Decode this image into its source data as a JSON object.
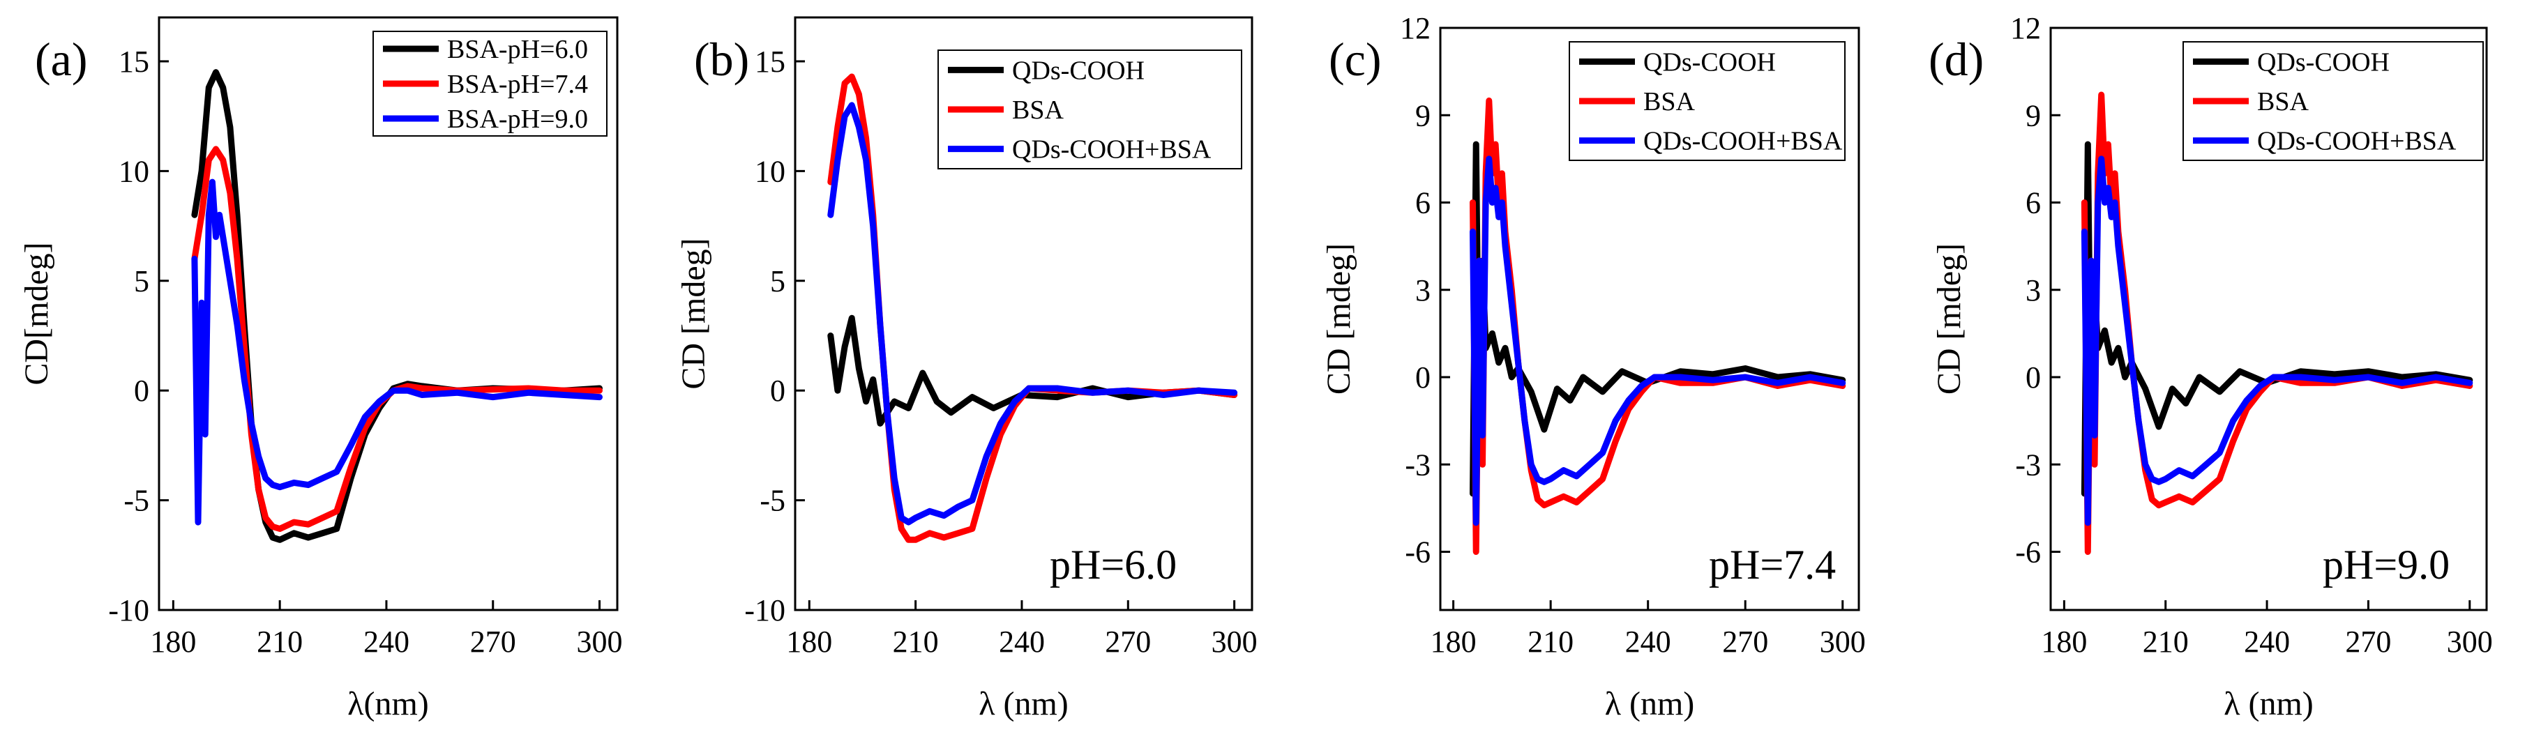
{
  "colors": {
    "black": "#000000",
    "red": "#ff0000",
    "blue": "#0000ff"
  },
  "chart_data": [
    {
      "type": "line",
      "panel_label": "(a)",
      "title": "",
      "xlabel": "λ(nm)",
      "ylabel": "CD[mdeg]",
      "xlim": [
        176,
        305
      ],
      "ylim": [
        -10,
        17
      ],
      "xticks": [
        180,
        210,
        240,
        270,
        300
      ],
      "yticks": [
        -10,
        -5,
        0,
        5,
        10,
        15
      ],
      "xtick_labels": [
        "180",
        "210",
        "240",
        "270",
        "300"
      ],
      "ytick_labels": [
        "-10",
        "-5",
        "0",
        "5",
        "10",
        "15"
      ],
      "annotation": "",
      "legend_position": "top-right",
      "series": [
        {
          "name": "BSA-pH=6.0",
          "color": "#000000",
          "x": [
            186,
            188,
            190,
            192,
            194,
            196,
            198,
            200,
            202,
            204,
            206,
            208,
            210,
            214,
            218,
            222,
            226,
            230,
            234,
            238,
            242,
            246,
            250,
            260,
            270,
            280,
            290,
            300
          ],
          "y": [
            8,
            10,
            13.8,
            14.5,
            13.8,
            12,
            8,
            3,
            -1.5,
            -4.5,
            -6,
            -6.7,
            -6.8,
            -6.5,
            -6.7,
            -6.5,
            -6.3,
            -4,
            -2,
            -0.8,
            0.1,
            0.3,
            0.2,
            0,
            0.1,
            0.05,
            0,
            0.1
          ]
        },
        {
          "name": "BSA-pH=7.4",
          "color": "#ff0000",
          "x": [
            186,
            188,
            190,
            192,
            194,
            196,
            198,
            200,
            202,
            204,
            206,
            208,
            210,
            214,
            218,
            222,
            226,
            230,
            234,
            238,
            242,
            246,
            250,
            260,
            270,
            280,
            290,
            300
          ],
          "y": [
            6,
            8,
            10.5,
            11,
            10.5,
            9,
            6,
            2,
            -2,
            -4.5,
            -5.8,
            -6.2,
            -6.3,
            -6,
            -6.1,
            -5.8,
            -5.5,
            -3.5,
            -1.7,
            -0.6,
            0,
            0.2,
            0.1,
            0,
            0.05,
            0.1,
            0,
            0
          ]
        },
        {
          "name": "BSA-pH=9.0",
          "color": "#0000ff",
          "x": [
            186,
            187,
            188,
            189,
            190,
            191,
            192,
            193,
            194,
            196,
            198,
            200,
            202,
            204,
            206,
            208,
            210,
            214,
            218,
            222,
            226,
            230,
            234,
            238,
            242,
            246,
            250,
            260,
            270,
            280,
            290,
            300
          ],
          "y": [
            6,
            -6,
            4,
            -2,
            8,
            9.5,
            7,
            8,
            7,
            5,
            3,
            0.5,
            -1.5,
            -3,
            -4,
            -4.3,
            -4.4,
            -4.2,
            -4.3,
            -4,
            -3.7,
            -2.5,
            -1.2,
            -0.5,
            0,
            0,
            -0.2,
            -0.1,
            -0.3,
            -0.1,
            -0.2,
            -0.3
          ]
        }
      ]
    },
    {
      "type": "line",
      "panel_label": "(b)",
      "title": "",
      "xlabel": "λ (nm)",
      "ylabel": "CD [mdeg]",
      "xlim": [
        176,
        305
      ],
      "ylim": [
        -10,
        17
      ],
      "xticks": [
        180,
        210,
        240,
        270,
        300
      ],
      "yticks": [
        -10,
        -5,
        0,
        5,
        10,
        15
      ],
      "xtick_labels": [
        "180",
        "210",
        "240",
        "270",
        "300"
      ],
      "ytick_labels": [
        "-10",
        "-5",
        "0",
        "5",
        "10",
        "15"
      ],
      "annotation": "pH=6.0",
      "legend_position": "top-right",
      "series": [
        {
          "name": "QDs-COOH",
          "color": "#000000",
          "x": [
            186,
            188,
            190,
            192,
            194,
            196,
            198,
            200,
            204,
            208,
            212,
            216,
            220,
            226,
            232,
            240,
            250,
            260,
            270,
            280,
            290,
            300
          ],
          "y": [
            2.5,
            0,
            2,
            3.3,
            1,
            -0.5,
            0.5,
            -1.5,
            -0.5,
            -0.8,
            0.8,
            -0.5,
            -1,
            -0.3,
            -0.8,
            -0.2,
            -0.3,
            0.1,
            -0.3,
            -0.1,
            0,
            -0.2
          ]
        },
        {
          "name": "BSA",
          "color": "#ff0000",
          "x": [
            186,
            188,
            190,
            192,
            194,
            196,
            198,
            200,
            202,
            204,
            206,
            208,
            210,
            214,
            218,
            222,
            226,
            230,
            234,
            238,
            242,
            250,
            260,
            270,
            280,
            290,
            300
          ],
          "y": [
            9.5,
            12,
            14,
            14.3,
            13.5,
            11.5,
            8,
            3,
            -1,
            -4.5,
            -6.3,
            -6.8,
            -6.8,
            -6.5,
            -6.7,
            -6.5,
            -6.3,
            -4,
            -2,
            -0.7,
            0.1,
            0,
            -0.1,
            0,
            -0.1,
            0,
            -0.2
          ]
        },
        {
          "name": "QDs-COOH+BSA",
          "color": "#0000ff",
          "x": [
            186,
            188,
            190,
            192,
            194,
            196,
            198,
            200,
            202,
            204,
            206,
            208,
            210,
            214,
            218,
            222,
            226,
            230,
            234,
            238,
            242,
            250,
            260,
            270,
            280,
            290,
            300
          ],
          "y": [
            8,
            10.5,
            12.5,
            13,
            12,
            10.5,
            7.5,
            3,
            -1,
            -4,
            -5.8,
            -6,
            -5.8,
            -5.5,
            -5.7,
            -5.3,
            -5,
            -3,
            -1.5,
            -0.5,
            0.1,
            0.1,
            -0.1,
            0,
            -0.2,
            0,
            -0.1
          ]
        }
      ]
    },
    {
      "type": "line",
      "panel_label": "(c)",
      "title": "",
      "xlabel": "λ (nm)",
      "ylabel": "CD [mdeg]",
      "xlim": [
        176,
        305
      ],
      "ylim": [
        -8,
        12
      ],
      "xticks": [
        180,
        210,
        240,
        270,
        300
      ],
      "yticks": [
        -6,
        -3,
        0,
        3,
        6,
        9,
        12
      ],
      "xtick_labels": [
        "180",
        "210",
        "240",
        "270",
        "300"
      ],
      "ytick_labels": [
        "-6",
        "-3",
        "0",
        "3",
        "6",
        "9",
        "12"
      ],
      "annotation": "pH=7.4",
      "legend_position": "top-right",
      "series": [
        {
          "name": "QDs-COOH",
          "color": "#000000",
          "x": [
            186,
            187,
            188,
            189,
            190,
            192,
            194,
            196,
            198,
            200,
            204,
            208,
            212,
            216,
            220,
            226,
            232,
            240,
            250,
            260,
            270,
            280,
            290,
            300
          ],
          "y": [
            -4,
            8,
            -2,
            4,
            1,
            1.5,
            0.5,
            1,
            0,
            0.3,
            -0.5,
            -1.8,
            -0.4,
            -0.8,
            0,
            -0.5,
            0.2,
            -0.2,
            0.2,
            0.1,
            0.3,
            0,
            0.1,
            -0.1
          ]
        },
        {
          "name": "BSA",
          "color": "#ff0000",
          "x": [
            186,
            187,
            188,
            189,
            190,
            191,
            192,
            193,
            194,
            195,
            196,
            198,
            200,
            202,
            204,
            206,
            208,
            210,
            214,
            218,
            222,
            226,
            230,
            234,
            238,
            242,
            250,
            260,
            270,
            280,
            290,
            300
          ],
          "y": [
            6,
            -6,
            4,
            -3,
            7,
            9.5,
            7,
            8,
            6,
            7,
            5,
            3,
            0.5,
            -1.5,
            -3.2,
            -4.2,
            -4.4,
            -4.3,
            -4.1,
            -4.3,
            -3.9,
            -3.5,
            -2.2,
            -1.1,
            -0.5,
            0,
            -0.2,
            -0.2,
            0,
            -0.3,
            -0.1,
            -0.3
          ]
        },
        {
          "name": "QDs-COOH+BSA",
          "color": "#0000ff",
          "x": [
            186,
            187,
            188,
            189,
            190,
            191,
            192,
            193,
            194,
            195,
            196,
            198,
            200,
            202,
            204,
            206,
            208,
            210,
            214,
            218,
            222,
            226,
            230,
            234,
            238,
            242,
            250,
            260,
            270,
            280,
            290,
            300
          ],
          "y": [
            5,
            -5,
            4,
            -2,
            6,
            7.5,
            6,
            6.5,
            5.5,
            6,
            4.5,
            2.5,
            0.5,
            -1.5,
            -3,
            -3.5,
            -3.6,
            -3.5,
            -3.2,
            -3.4,
            -3,
            -2.6,
            -1.5,
            -0.8,
            -0.3,
            0,
            0,
            -0.1,
            0,
            -0.2,
            0,
            -0.2
          ]
        }
      ]
    },
    {
      "type": "line",
      "panel_label": "(d)",
      "title": "",
      "xlabel": "λ (nm)",
      "ylabel": "CD [mdeg]",
      "xlim": [
        176,
        305
      ],
      "ylim": [
        -8,
        12
      ],
      "xticks": [
        180,
        210,
        240,
        270,
        300
      ],
      "yticks": [
        -6,
        -3,
        0,
        3,
        6,
        9,
        12
      ],
      "xtick_labels": [
        "180",
        "210",
        "240",
        "270",
        "300"
      ],
      "ytick_labels": [
        "-6",
        "-3",
        "0",
        "3",
        "6",
        "9",
        "12"
      ],
      "annotation": "pH=9.0",
      "legend_position": "top-right",
      "series": [
        {
          "name": "QDs-COOH",
          "color": "#000000",
          "x": [
            186,
            187,
            188,
            189,
            190,
            192,
            194,
            196,
            198,
            200,
            204,
            208,
            212,
            216,
            220,
            226,
            232,
            240,
            250,
            260,
            270,
            280,
            290,
            300
          ],
          "y": [
            -4,
            8,
            -2,
            3,
            1,
            1.6,
            0.5,
            1,
            0,
            0.5,
            -0.4,
            -1.7,
            -0.4,
            -0.9,
            0,
            -0.5,
            0.2,
            -0.2,
            0.2,
            0.1,
            0.2,
            0,
            0.1,
            -0.1
          ]
        },
        {
          "name": "BSA",
          "color": "#ff0000",
          "x": [
            186,
            187,
            188,
            189,
            190,
            191,
            192,
            193,
            194,
            195,
            196,
            198,
            200,
            202,
            204,
            206,
            208,
            210,
            214,
            218,
            222,
            226,
            230,
            234,
            238,
            242,
            250,
            260,
            270,
            280,
            290,
            300
          ],
          "y": [
            6,
            -6,
            4,
            -3,
            7,
            9.7,
            7,
            8,
            6,
            7,
            5,
            3,
            0.5,
            -1.5,
            -3.2,
            -4.2,
            -4.4,
            -4.3,
            -4.1,
            -4.3,
            -3.9,
            -3.5,
            -2.2,
            -1.1,
            -0.5,
            0,
            -0.2,
            -0.2,
            0,
            -0.3,
            -0.1,
            -0.3
          ]
        },
        {
          "name": "QDs-COOH+BSA",
          "color": "#0000ff",
          "x": [
            186,
            187,
            188,
            189,
            190,
            191,
            192,
            193,
            194,
            195,
            196,
            198,
            200,
            202,
            204,
            206,
            208,
            210,
            214,
            218,
            222,
            226,
            230,
            234,
            238,
            242,
            250,
            260,
            270,
            280,
            290,
            300
          ],
          "y": [
            5,
            -5,
            4,
            -2,
            6,
            7.5,
            6,
            6.5,
            5.5,
            6,
            4.5,
            2.5,
            0.5,
            -1.5,
            -3,
            -3.5,
            -3.6,
            -3.5,
            -3.2,
            -3.4,
            -3,
            -2.6,
            -1.5,
            -0.8,
            -0.3,
            0,
            0,
            -0.1,
            0,
            -0.2,
            0,
            -0.2
          ]
        }
      ]
    }
  ]
}
